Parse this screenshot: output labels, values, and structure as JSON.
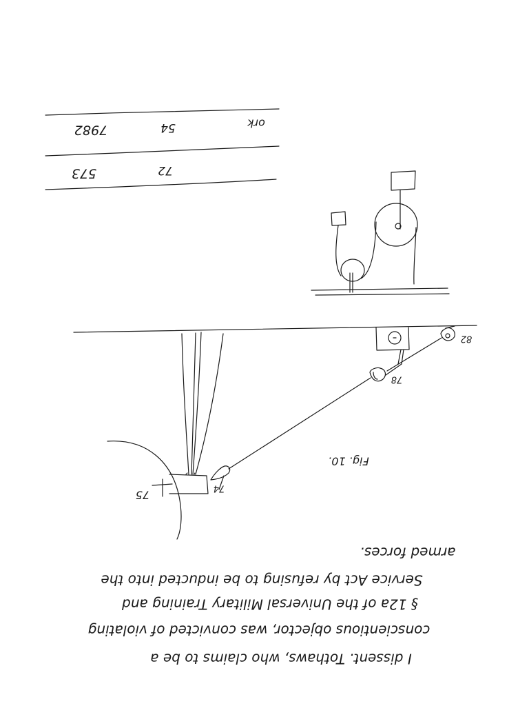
{
  "page": {
    "background": "#ffffff",
    "ink_color": "#1a1a1a",
    "orientation": "rotated 180 degrees"
  },
  "table": {
    "rows": [
      {
        "c1": "7982",
        "c2": "54",
        "c3": "ork"
      },
      {
        "c1": "573",
        "c2": "72",
        "c3": ""
      }
    ]
  },
  "figure": {
    "caption": "Fig. 10.",
    "labels": {
      "l75": "75",
      "l74": "74",
      "l78": "78",
      "l82": "82"
    }
  },
  "text": {
    "line1": "I dissent. Tothaws, who claims to be a",
    "line2": "conscientious objector, was convicted of violating",
    "line3": "§ 12a of the Universal Military Training and",
    "line4": "Service Act by refusing to be inducted into the",
    "line5": "armed forces."
  }
}
